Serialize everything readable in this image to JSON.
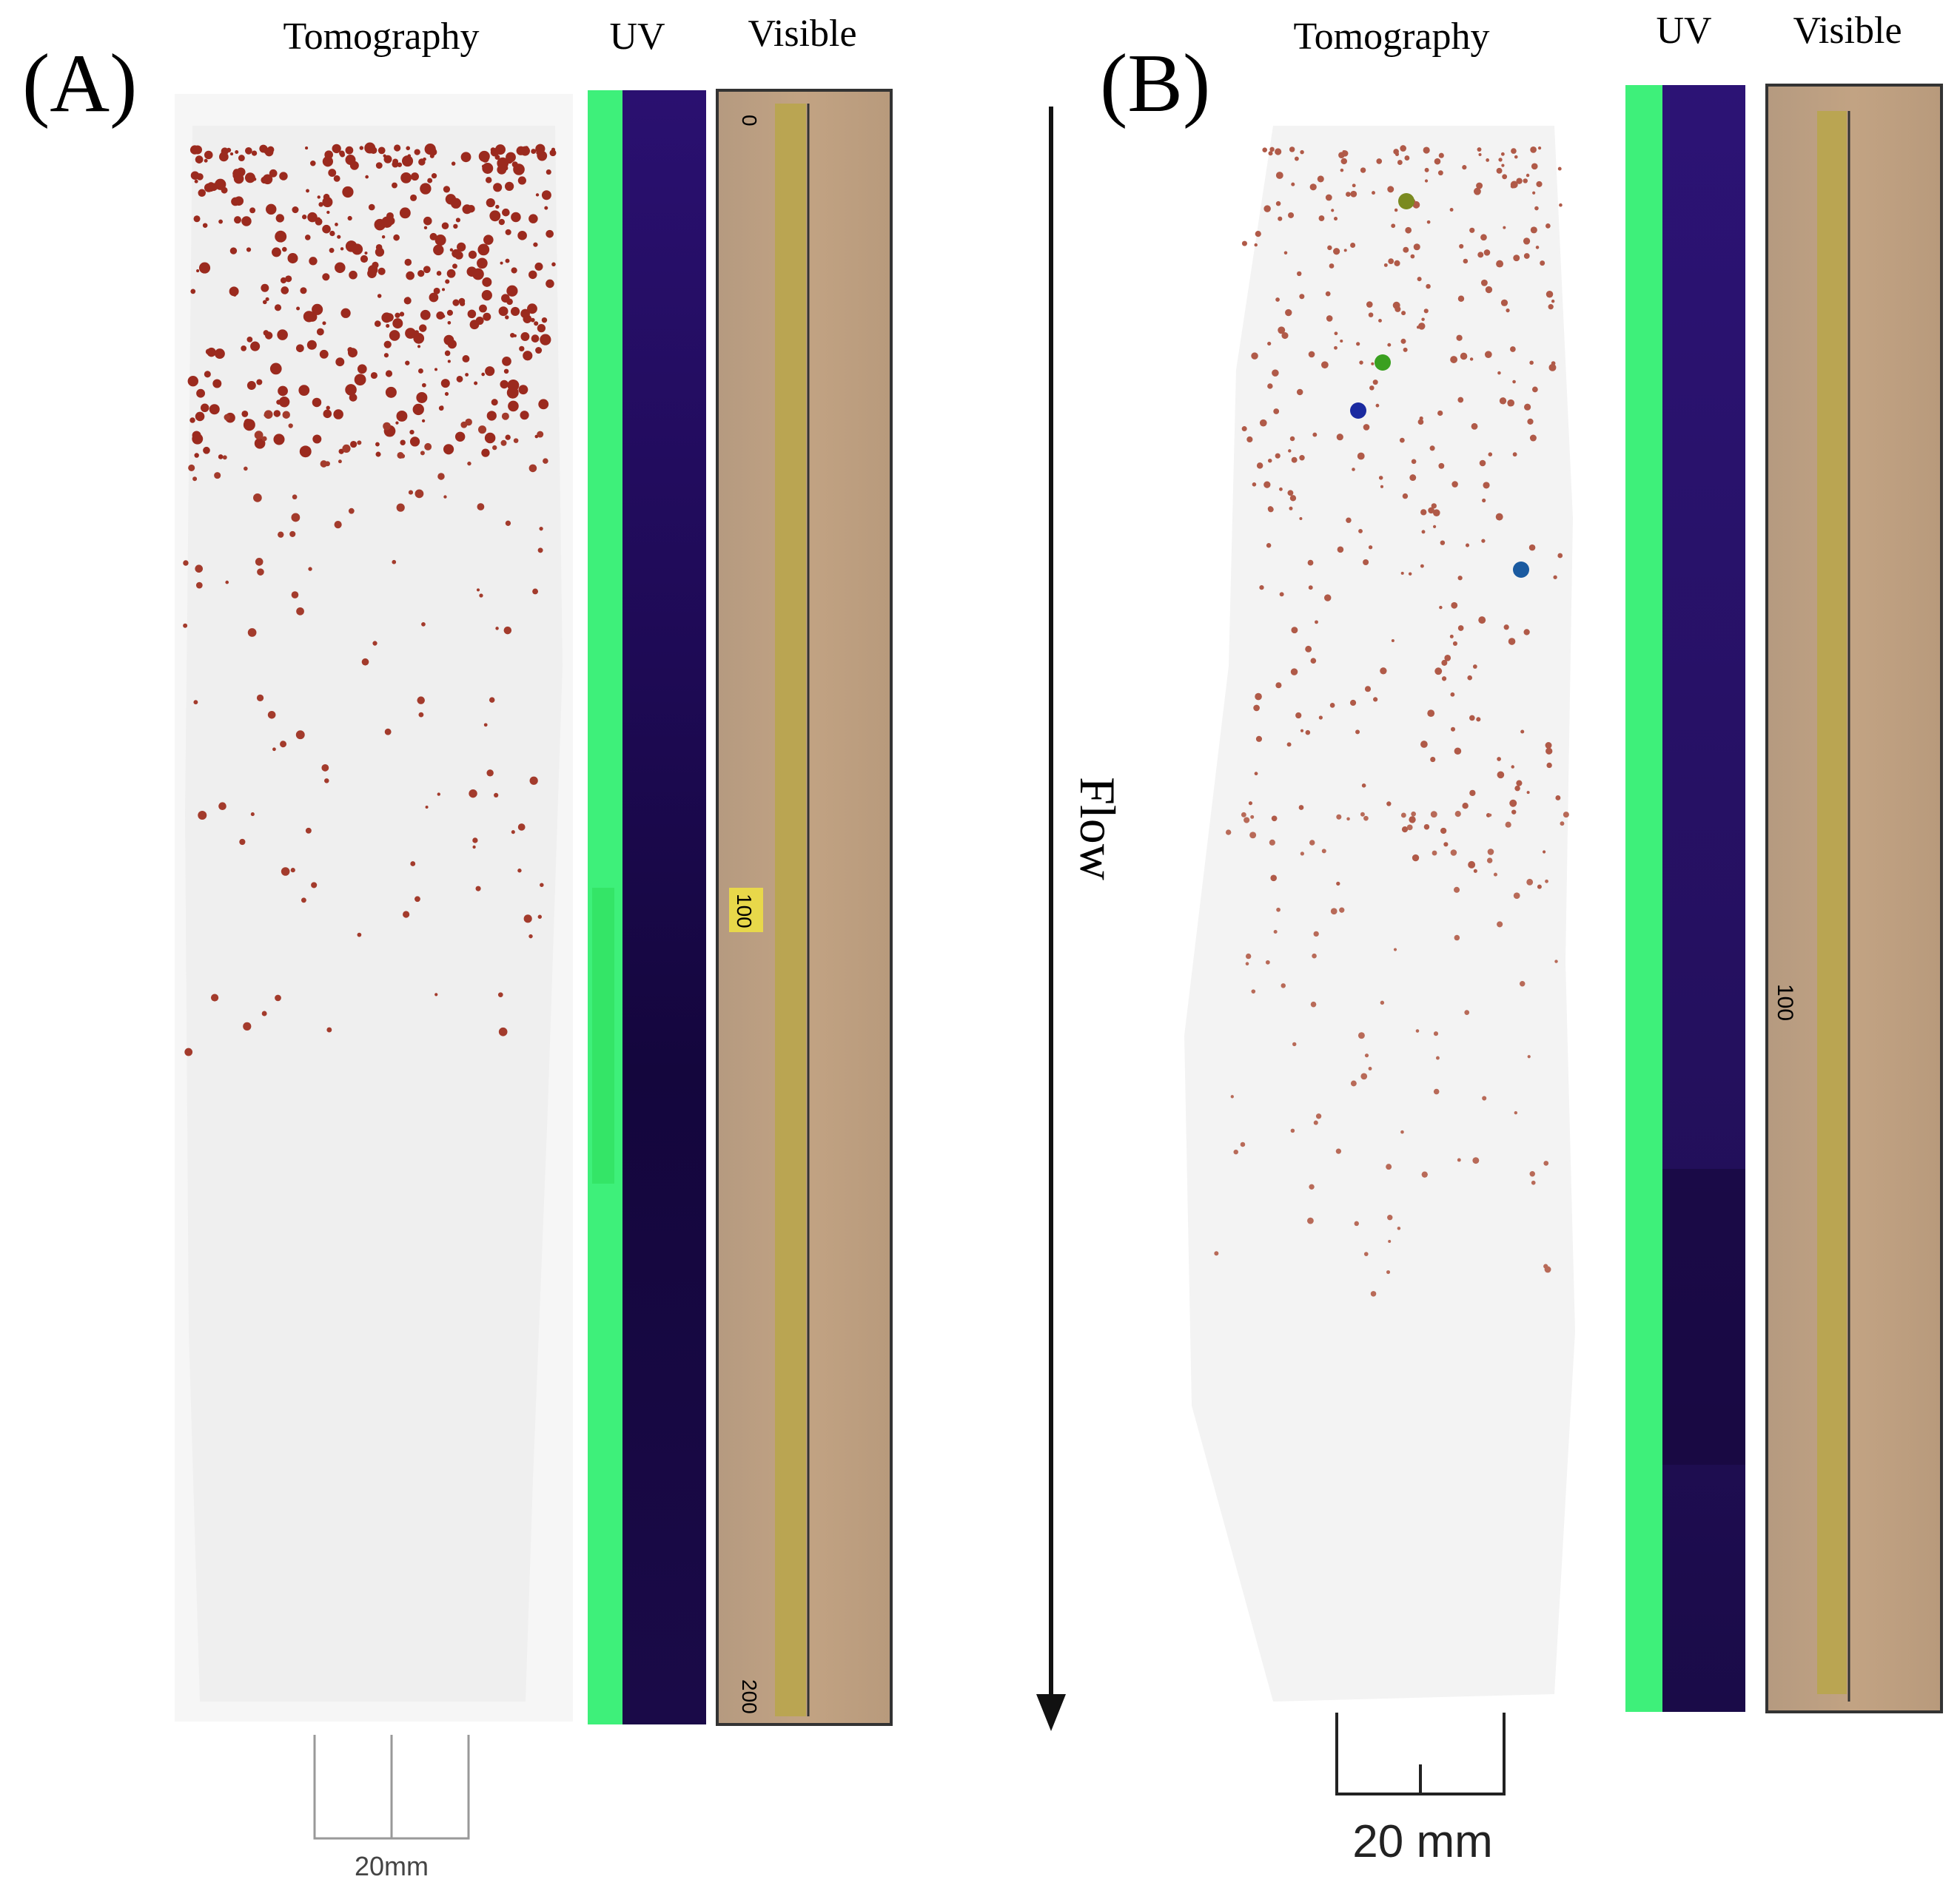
{
  "panels": [
    {
      "label": "(A)",
      "columns": [
        "Tomography",
        "UV",
        "Visible"
      ],
      "ruler_labels": [
        "0",
        "100",
        "200"
      ],
      "scale_bar": "20mm"
    },
    {
      "label": "(B)",
      "columns": [
        "Tomography",
        "UV",
        "Visible"
      ],
      "ruler_labels": [
        "100"
      ],
      "scale_bar": "20 mm"
    }
  ],
  "flow_label": "Flow"
}
